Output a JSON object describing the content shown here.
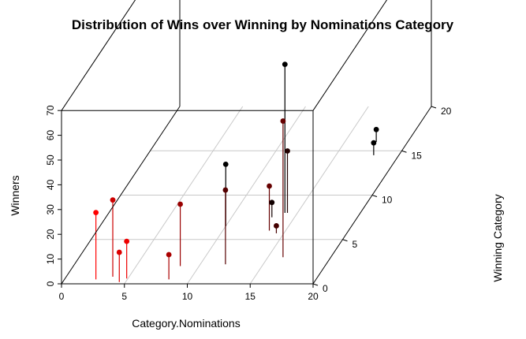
{
  "chart_data": {
    "type": "scatter",
    "title": "Distribution of Wins over Winning by Nominations Category",
    "xlabel": "Category.Nominations",
    "ylabel": "Winning Category",
    "zlabel": "Winners",
    "xlim": [
      0,
      20
    ],
    "ylim": [
      0,
      20
    ],
    "zlim": [
      0,
      70
    ],
    "x_ticks": [
      "0",
      "5",
      "10",
      "15",
      "20"
    ],
    "y_ticks": [
      "0",
      "5",
      "10",
      "15",
      "20"
    ],
    "z_ticks": [
      "0",
      "10",
      "20",
      "30",
      "40",
      "50",
      "60",
      "70"
    ],
    "grid": true,
    "vertical_drop_lines": true,
    "points": [
      {
        "x": 2.5,
        "y": 0.5,
        "z": 27,
        "color": "#ff0000"
      },
      {
        "x": 3.7,
        "y": 0.8,
        "z": 31,
        "color": "#cc0000"
      },
      {
        "x": 4.5,
        "y": 0.2,
        "z": 12,
        "color": "#dd0000"
      },
      {
        "x": 4.9,
        "y": 0.6,
        "z": 15,
        "color": "#ee0000"
      },
      {
        "x": 8.5,
        "y": 2.0,
        "z": 25,
        "color": "#990000"
      },
      {
        "x": 8.3,
        "y": 0.5,
        "z": 10,
        "color": "#aa0000"
      },
      {
        "x": 10.0,
        "y": 6.5,
        "z": 25,
        "color": "#000000"
      },
      {
        "x": 12.0,
        "y": 2.2,
        "z": 30,
        "color": "#550000"
      },
      {
        "x": 14.0,
        "y": 8.0,
        "z": 60,
        "color": "#000000"
      },
      {
        "x": 14.2,
        "y": 8.0,
        "z": 25,
        "color": "#220000"
      },
      {
        "x": 13.7,
        "y": 6.0,
        "z": 18,
        "color": "#660000"
      },
      {
        "x": 13.2,
        "y": 7.5,
        "z": 6,
        "color": "#110000"
      },
      {
        "x": 14.4,
        "y": 5.7,
        "z": 3,
        "color": "#440000"
      },
      {
        "x": 16.2,
        "y": 3.0,
        "z": 55,
        "color": "#660000"
      },
      {
        "x": 17.5,
        "y": 16.0,
        "z": 5,
        "color": "#000000"
      },
      {
        "x": 18.0,
        "y": 14.5,
        "z": 5,
        "color": "#000000"
      }
    ]
  }
}
